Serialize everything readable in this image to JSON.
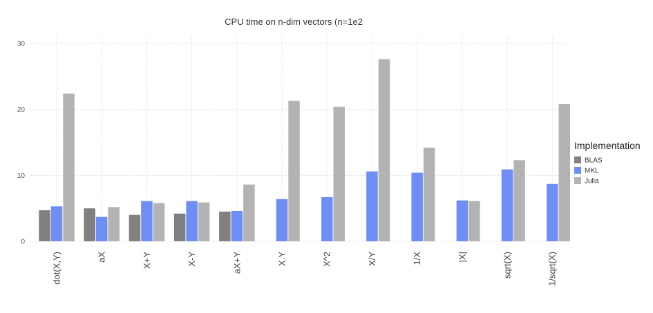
{
  "chart_data": {
    "type": "bar",
    "title": "CPU time on n-dim vectors (n=1e2",
    "xlabel": "",
    "ylabel": "",
    "ylim": [
      0,
      30
    ],
    "yticks": [
      0,
      10,
      20,
      30
    ],
    "grid": true,
    "legend_placement": "right",
    "legend_title": "Implementation",
    "categories": [
      "dot(X,Y)",
      "aX",
      "X+Y",
      "X-Y",
      "aX+Y",
      "X.Y",
      "X^2",
      "X/Y",
      "1/X",
      "|X|",
      "sqrt(X)",
      "1/sqrt(X)"
    ],
    "series": [
      {
        "name": "BLAS",
        "color": "#808080",
        "values": [
          4.7,
          5.0,
          4.0,
          4.2,
          4.5,
          null,
          null,
          null,
          null,
          null,
          null,
          null
        ]
      },
      {
        "name": "MKL",
        "color": "#6f8ef5",
        "values": [
          5.3,
          3.7,
          6.1,
          6.1,
          4.6,
          6.4,
          6.7,
          10.6,
          10.4,
          6.2,
          10.9,
          8.7
        ]
      },
      {
        "name": "Julia",
        "color": "#b3b3b3",
        "values": [
          22.4,
          5.2,
          5.8,
          5.9,
          8.6,
          21.3,
          20.4,
          27.6,
          14.2,
          6.1,
          12.3,
          20.8
        ]
      }
    ]
  }
}
